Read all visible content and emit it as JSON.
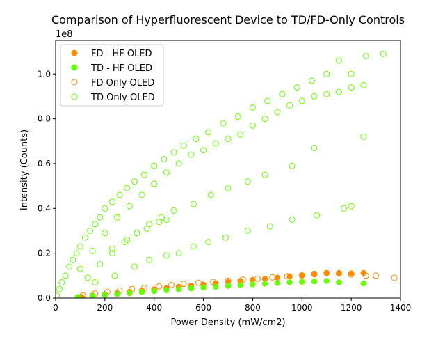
{
  "chart_data": {
    "type": "scatter",
    "title": "Comparison of Hyperfluorescent Device to TD/FD-Only Controls",
    "xlabel": "Power Density (mW/cm2)",
    "ylabel": "Intensity (Counts)",
    "y_offset_label": "1e8",
    "xlim": [
      0,
      1400
    ],
    "ylim": [
      0,
      1.15
    ],
    "xticks": [
      0,
      200,
      400,
      600,
      800,
      1000,
      1200,
      1400
    ],
    "yticks": [
      0.0,
      0.2,
      0.4,
      0.6,
      0.8,
      1.0
    ],
    "ytick_labels": [
      "0.0",
      "0.2",
      "0.4",
      "0.6",
      "0.8",
      "1.0"
    ],
    "legend_position": "upper-left",
    "grid": false,
    "series": [
      {
        "name": "FD - HF OLED",
        "color": "#ff8c00",
        "marker": "filled-circle",
        "points": [
          [
            105,
            0.005
          ],
          [
            150,
            0.011
          ],
          [
            200,
            0.016
          ],
          [
            250,
            0.022
          ],
          [
            300,
            0.028
          ],
          [
            350,
            0.033
          ],
          [
            400,
            0.039
          ],
          [
            450,
            0.044
          ],
          [
            500,
            0.05
          ],
          [
            550,
            0.055
          ],
          [
            600,
            0.06
          ],
          [
            650,
            0.066
          ],
          [
            700,
            0.071
          ],
          [
            750,
            0.076
          ],
          [
            800,
            0.081
          ],
          [
            850,
            0.086
          ],
          [
            900,
            0.091
          ],
          [
            950,
            0.096
          ],
          [
            1000,
            0.1
          ],
          [
            1050,
            0.105
          ],
          [
            1100,
            0.11
          ],
          [
            1150,
            0.112
          ],
          [
            1200,
            0.11
          ],
          [
            1250,
            0.112
          ]
        ]
      },
      {
        "name": "TD - HF OLED",
        "color": "#66ff00",
        "marker": "filled-circle",
        "points": [
          [
            90,
            0.004
          ],
          [
            150,
            0.009
          ],
          [
            200,
            0.013
          ],
          [
            250,
            0.018
          ],
          [
            300,
            0.022
          ],
          [
            350,
            0.027
          ],
          [
            400,
            0.031
          ],
          [
            450,
            0.035
          ],
          [
            500,
            0.039
          ],
          [
            550,
            0.043
          ],
          [
            600,
            0.047
          ],
          [
            650,
            0.05
          ],
          [
            700,
            0.054
          ],
          [
            750,
            0.058
          ],
          [
            800,
            0.061
          ],
          [
            850,
            0.064
          ],
          [
            900,
            0.067
          ],
          [
            950,
            0.07
          ],
          [
            1000,
            0.072
          ],
          [
            1050,
            0.074
          ],
          [
            1100,
            0.076
          ],
          [
            1150,
            0.07
          ],
          [
            1250,
            0.065
          ]
        ]
      },
      {
        "name": "FD Only OLED",
        "color": "#ff8c00",
        "marker": "hollow-circle",
        "points": [
          [
            110,
            0.012
          ],
          [
            160,
            0.02
          ],
          [
            210,
            0.028
          ],
          [
            260,
            0.033
          ],
          [
            310,
            0.04
          ],
          [
            360,
            0.045
          ],
          [
            420,
            0.052
          ],
          [
            470,
            0.058
          ],
          [
            520,
            0.063
          ],
          [
            580,
            0.068
          ],
          [
            640,
            0.072
          ],
          [
            700,
            0.077
          ],
          [
            760,
            0.082
          ],
          [
            820,
            0.086
          ],
          [
            880,
            0.092
          ],
          [
            940,
            0.097
          ],
          [
            1000,
            0.101
          ],
          [
            1050,
            0.108
          ],
          [
            1100,
            0.112
          ],
          [
            1150,
            0.11
          ],
          [
            1200,
            0.105
          ],
          [
            1260,
            0.1
          ],
          [
            1300,
            0.1
          ],
          [
            1375,
            0.09
          ]
        ]
      },
      {
        "name": "TD Only OLED",
        "color": "#66ff00",
        "marker": "hollow-circle",
        "points": [
          [
            5,
            0.01
          ],
          [
            15,
            0.04
          ],
          [
            25,
            0.07
          ],
          [
            40,
            0.1
          ],
          [
            55,
            0.14
          ],
          [
            70,
            0.17
          ],
          [
            85,
            0.2
          ],
          [
            100,
            0.23
          ],
          [
            120,
            0.27
          ],
          [
            140,
            0.3
          ],
          [
            160,
            0.33
          ],
          [
            180,
            0.36
          ],
          [
            200,
            0.4
          ],
          [
            230,
            0.43
          ],
          [
            260,
            0.46
          ],
          [
            290,
            0.49
          ],
          [
            320,
            0.52
          ],
          [
            360,
            0.55
          ],
          [
            400,
            0.59
          ],
          [
            440,
            0.62
          ],
          [
            480,
            0.65
          ],
          [
            520,
            0.68
          ],
          [
            570,
            0.71
          ],
          [
            620,
            0.74
          ],
          [
            680,
            0.78
          ],
          [
            740,
            0.81
          ],
          [
            800,
            0.85
          ],
          [
            860,
            0.88
          ],
          [
            920,
            0.91
          ],
          [
            980,
            0.94
          ],
          [
            1040,
            0.97
          ],
          [
            1100,
            1.0
          ],
          [
            1150,
            1.06
          ],
          [
            1200,
            1.0
          ],
          [
            1260,
            1.08
          ],
          [
            1330,
            1.09
          ],
          [
            100,
            0.13
          ],
          [
            150,
            0.21
          ],
          [
            200,
            0.29
          ],
          [
            250,
            0.36
          ],
          [
            300,
            0.41
          ],
          [
            350,
            0.46
          ],
          [
            400,
            0.51
          ],
          [
            450,
            0.56
          ],
          [
            500,
            0.6
          ],
          [
            550,
            0.64
          ],
          [
            600,
            0.66
          ],
          [
            650,
            0.69
          ],
          [
            700,
            0.71
          ],
          [
            750,
            0.73
          ],
          [
            800,
            0.77
          ],
          [
            850,
            0.8
          ],
          [
            900,
            0.83
          ],
          [
            950,
            0.86
          ],
          [
            1000,
            0.88
          ],
          [
            1050,
            0.9
          ],
          [
            1100,
            0.91
          ],
          [
            1150,
            0.92
          ],
          [
            1200,
            0.94
          ],
          [
            1250,
            0.95
          ],
          [
            130,
            0.09
          ],
          [
            180,
            0.15
          ],
          [
            230,
            0.2
          ],
          [
            280,
            0.25
          ],
          [
            330,
            0.29
          ],
          [
            380,
            0.33
          ],
          [
            430,
            0.36
          ],
          [
            480,
            0.39
          ],
          [
            560,
            0.42
          ],
          [
            630,
            0.46
          ],
          [
            700,
            0.49
          ],
          [
            780,
            0.52
          ],
          [
            850,
            0.55
          ],
          [
            960,
            0.59
          ],
          [
            1050,
            0.67
          ],
          [
            1250,
            0.72
          ],
          [
            160,
            0.07
          ],
          [
            240,
            0.1
          ],
          [
            320,
            0.14
          ],
          [
            380,
            0.17
          ],
          [
            450,
            0.19
          ],
          [
            500,
            0.2
          ],
          [
            560,
            0.23
          ],
          [
            620,
            0.25
          ],
          [
            690,
            0.27
          ],
          [
            780,
            0.3
          ],
          [
            870,
            0.32
          ],
          [
            960,
            0.35
          ],
          [
            1060,
            0.37
          ],
          [
            1170,
            0.4
          ],
          [
            1200,
            0.41
          ],
          [
            330,
            0.29
          ],
          [
            420,
            0.34
          ],
          [
            450,
            0.35
          ],
          [
            370,
            0.31
          ],
          [
            290,
            0.26
          ],
          [
            230,
            0.22
          ]
        ]
      }
    ]
  }
}
